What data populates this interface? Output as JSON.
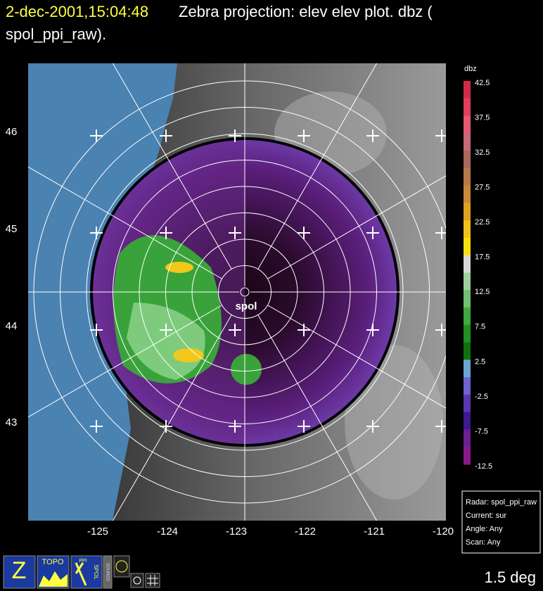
{
  "header": {
    "timestamp": "2-dec-2001,15:04:48",
    "title_rest": "Zebra projection: elev elev  plot.  dbz (",
    "title_line2": "spol_ppi_raw)."
  },
  "axes": {
    "lat_labels": [
      "46",
      "45",
      "44",
      "43"
    ],
    "lon_labels": [
      "-125",
      "-124",
      "-123",
      "-122",
      "-121",
      "-120"
    ]
  },
  "colorbar": {
    "title": "dbz",
    "labels": [
      "42.5",
      "37.5",
      "32.5",
      "27.5",
      "22.5",
      "17.5",
      "12.5",
      "7.5",
      "2.5",
      "-2.5",
      "-7.5",
      "-12.5"
    ]
  },
  "map": {
    "station_label": "spol"
  },
  "info_box": {
    "lines": [
      "Radar: spol_ppi_raw",
      "Current: sur",
      "Angle: Any",
      "Scan: Any"
    ]
  },
  "footer": {
    "angle": "1.5 deg"
  },
  "toolbar": {
    "labels": [
      "TOPO",
      "PPI",
      "SPOL",
      "SOUNDS"
    ]
  }
}
